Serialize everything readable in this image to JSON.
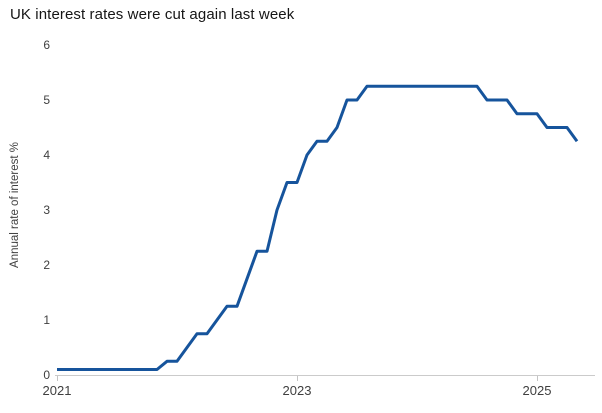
{
  "chart_data": {
    "type": "line",
    "title": "UK interest rates were cut again last week",
    "ylabel": "Annual rate of interest %",
    "xlabel": "",
    "ylim": [
      0,
      6
    ],
    "xlim": [
      2021.0,
      2025.45
    ],
    "grid": false,
    "legend": "none",
    "y_ticks": [
      0,
      1,
      2,
      3,
      4,
      5,
      6
    ],
    "x_ticks": [
      {
        "x": 2021,
        "label": "2021"
      },
      {
        "x": 2023,
        "label": "2023"
      },
      {
        "x": 2025,
        "label": "2025"
      }
    ],
    "series": [
      {
        "points": [
          [
            2021.0,
            0.1
          ],
          [
            2021.833,
            0.1
          ],
          [
            2021.917,
            0.25
          ],
          [
            2022.0,
            0.25
          ],
          [
            2022.083,
            0.5
          ],
          [
            2022.167,
            0.75
          ],
          [
            2022.25,
            0.75
          ],
          [
            2022.333,
            1.0
          ],
          [
            2022.417,
            1.25
          ],
          [
            2022.5,
            1.25
          ],
          [
            2022.583,
            1.75
          ],
          [
            2022.667,
            2.25
          ],
          [
            2022.75,
            2.25
          ],
          [
            2022.833,
            3.0
          ],
          [
            2022.917,
            3.5
          ],
          [
            2023.0,
            3.5
          ],
          [
            2023.083,
            4.0
          ],
          [
            2023.167,
            4.25
          ],
          [
            2023.25,
            4.25
          ],
          [
            2023.333,
            4.5
          ],
          [
            2023.417,
            5.0
          ],
          [
            2023.5,
            5.0
          ],
          [
            2023.583,
            5.25
          ],
          [
            2024.5,
            5.25
          ],
          [
            2024.583,
            5.0
          ],
          [
            2024.75,
            5.0
          ],
          [
            2024.833,
            4.75
          ],
          [
            2025.0,
            4.75
          ],
          [
            2025.083,
            4.5
          ],
          [
            2025.25,
            4.5
          ],
          [
            2025.333,
            4.25
          ]
        ]
      }
    ],
    "colors": {
      "line": "#16549C",
      "axis": "#CBCBCB",
      "tick": "#C4C4C4",
      "tick_text": "#3F3F3F",
      "title_text": "#161616"
    }
  }
}
